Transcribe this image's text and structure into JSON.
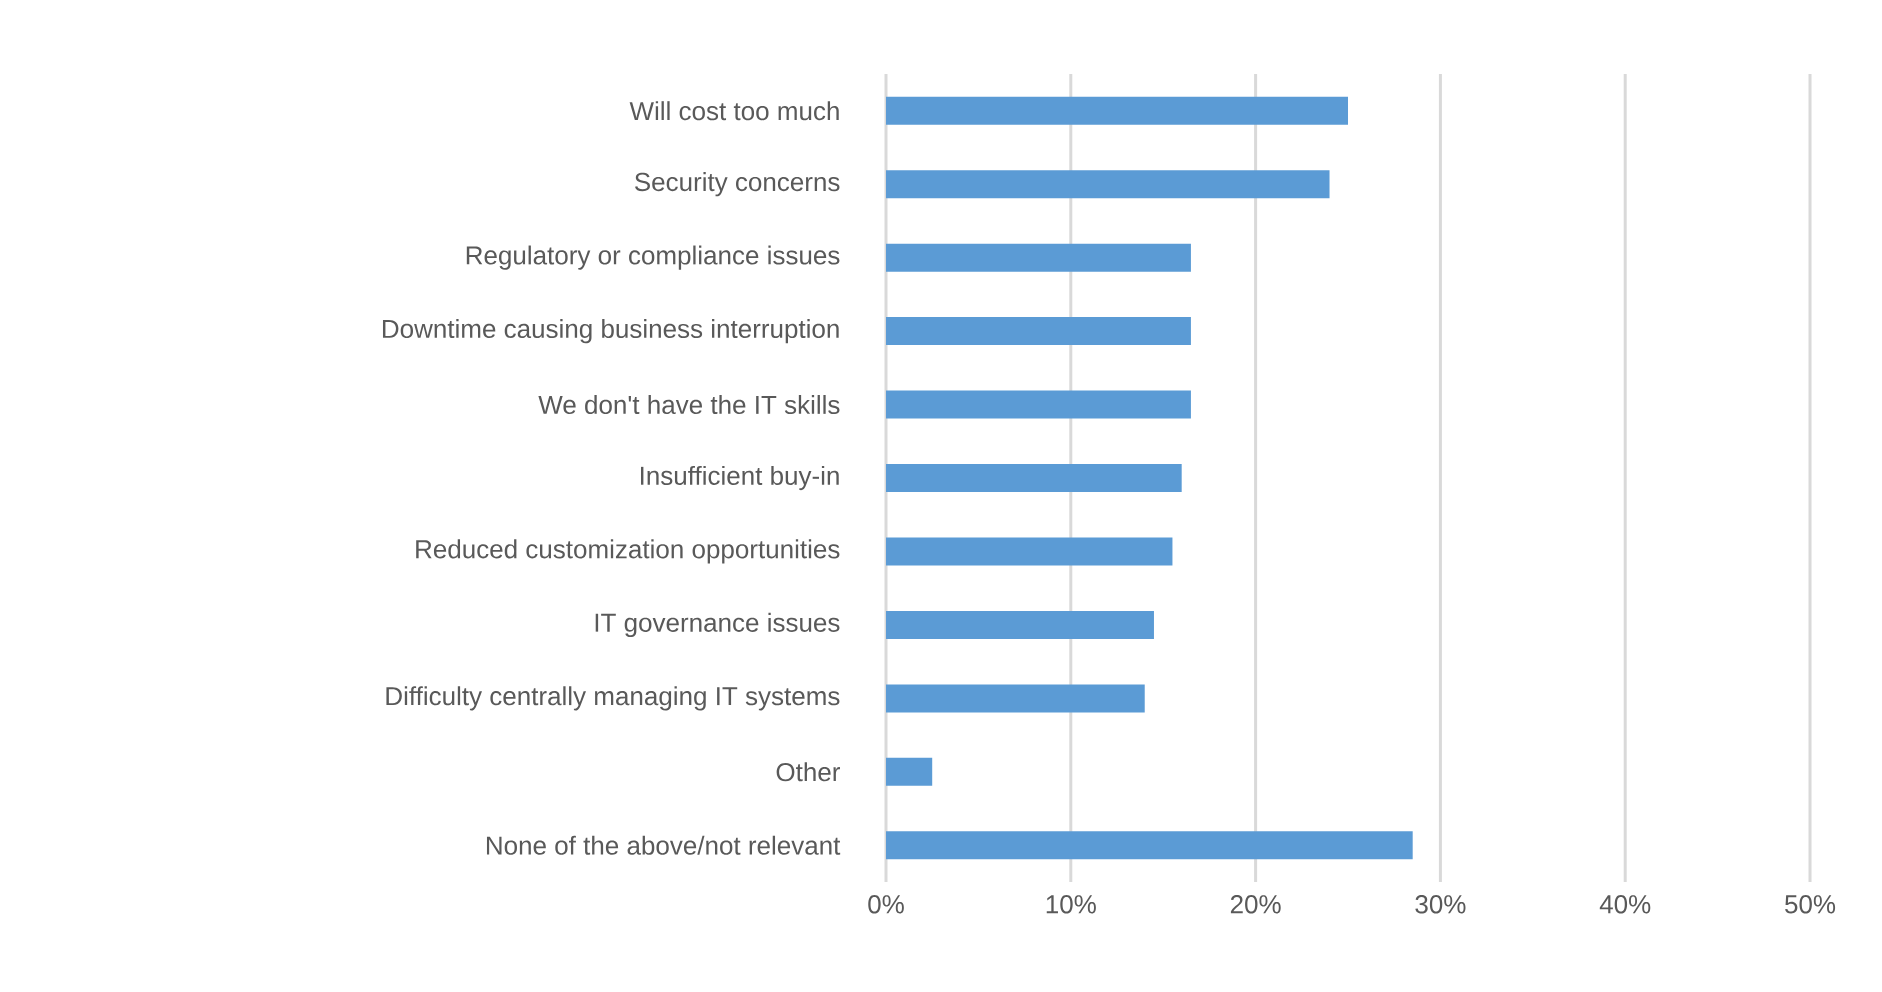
{
  "chart_data": {
    "type": "bar",
    "orientation": "horizontal",
    "categories": [
      "Will cost too much",
      "Security concerns",
      "Regulatory or compliance issues",
      "Downtime causing business interruption",
      "We don't have the IT skills",
      "Insufficient buy-in",
      "Reduced customization opportunities",
      "IT governance issues",
      "Difficulty centrally managing IT systems",
      "Other",
      "None of the above/not relevant"
    ],
    "values": [
      25,
      24,
      16.5,
      16.5,
      16.5,
      16,
      15.5,
      14.5,
      14,
      2.5,
      28.5
    ],
    "color": "#5b9bd5",
    "xlim": [
      0,
      50
    ],
    "xticks": [
      {
        "value": 0,
        "label": "0%"
      },
      {
        "value": 10,
        "label": "10%"
      },
      {
        "value": 20,
        "label": "20%"
      },
      {
        "value": 30,
        "label": "30%"
      },
      {
        "value": 40,
        "label": "40%"
      },
      {
        "value": 50,
        "label": "50%"
      }
    ],
    "grid": "x"
  }
}
